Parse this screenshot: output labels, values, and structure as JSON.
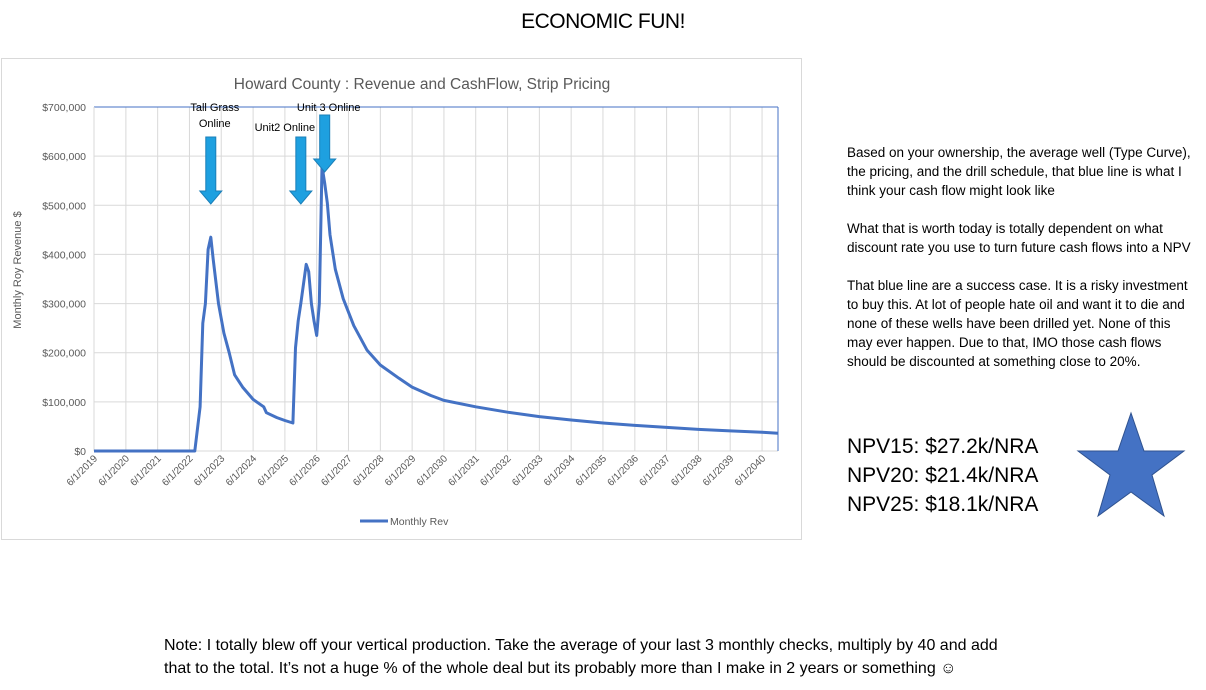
{
  "slide": {
    "title": "ECONOMIC FUN!",
    "paragraphs": [
      "Based on your ownership, the average well (Type Curve), the pricing, and the drill schedule, that blue line is what I think your cash flow might look like",
      "What that is worth today is totally dependent on what discount rate you use to turn future cash flows into a NPV",
      "That blue line are a success case.  It is a risky investment to buy this.  At lot of people hate oil and want it to die and none of these wells have been drilled yet.  None of this may ever happen.  Due to that, IMO those cash flows should be discounted at something close to 20%."
    ],
    "npv": [
      "NPV15:  $27.2k/NRA",
      "NPV20:  $21.4k/NRA",
      "NPV25:  $18.1k/NRA"
    ],
    "note_lines": [
      "Note:  I totally blew off your vertical production.  Take the average of your last 3 monthly checks, multiply by 40 and add",
      "that to the total.   It’s not a huge % of the whole deal but its probably more than I make in 2 years or something ☺"
    ],
    "colors": {
      "series": "#4472c4",
      "arrow": "#1ea0e0",
      "star": "#4472c4",
      "grid": "#d9d9d9"
    },
    "icons": [
      "star-icon",
      "down-arrow-icon"
    ]
  },
  "chart_data": {
    "type": "line",
    "title": "Howard County :  Revenue and CashFlow, Strip Pricing",
    "ylabel": "Monthly Roy Revenue $",
    "xlabel": "",
    "ylim": [
      0,
      700000
    ],
    "xlim": [
      "2019-06-01",
      "2040-12-01"
    ],
    "y_ticks": [
      0,
      100000,
      200000,
      300000,
      400000,
      500000,
      600000,
      700000
    ],
    "y_tick_labels": [
      "$0",
      "$100,000",
      "$200,000",
      "$300,000",
      "$400,000",
      "$500,000",
      "$600,000",
      "$700,000"
    ],
    "x_tick_labels": [
      "6/1/2019",
      "6/1/2020",
      "6/1/2021",
      "6/1/2022",
      "6/1/2023",
      "6/1/2024",
      "6/1/2025",
      "6/1/2026",
      "6/1/2027",
      "6/1/2028",
      "6/1/2029",
      "6/1/2030",
      "6/1/2031",
      "6/1/2032",
      "6/1/2033",
      "6/1/2034",
      "6/1/2035",
      "6/1/2036",
      "6/1/2037",
      "6/1/2038",
      "6/1/2039",
      "6/1/2040"
    ],
    "grid": true,
    "legend": "bottom",
    "series": [
      {
        "name": "Monthly Rev",
        "points": [
          [
            "2019-06-01",
            0
          ],
          [
            "2021-08-01",
            0
          ],
          [
            "2021-10-01",
            0
          ],
          [
            "2022-08-01",
            0
          ],
          [
            "2022-10-01",
            90000
          ],
          [
            "2022-11-01",
            260000
          ],
          [
            "2022-12-01",
            300000
          ],
          [
            "2023-01-01",
            410000
          ],
          [
            "2023-02-01",
            435000
          ],
          [
            "2023-03-01",
            390000
          ],
          [
            "2023-05-01",
            300000
          ],
          [
            "2023-07-01",
            240000
          ],
          [
            "2023-09-01",
            200000
          ],
          [
            "2023-11-01",
            155000
          ],
          [
            "2024-02-01",
            130000
          ],
          [
            "2024-06-01",
            105000
          ],
          [
            "2024-10-01",
            90000
          ],
          [
            "2024-11-01",
            78000
          ],
          [
            "2025-03-01",
            68000
          ],
          [
            "2025-06-01",
            62000
          ],
          [
            "2025-09-01",
            57000
          ],
          [
            "2025-10-01",
            210000
          ],
          [
            "2025-11-01",
            265000
          ],
          [
            "2025-12-01",
            300000
          ],
          [
            "2026-02-01",
            380000
          ],
          [
            "2026-03-01",
            365000
          ],
          [
            "2026-04-01",
            300000
          ],
          [
            "2026-05-01",
            265000
          ],
          [
            "2026-06-01",
            235000
          ],
          [
            "2026-07-01",
            300000
          ],
          [
            "2026-08-01",
            580000
          ],
          [
            "2026-09-01",
            545000
          ],
          [
            "2026-10-01",
            505000
          ],
          [
            "2026-11-01",
            440000
          ],
          [
            "2027-01-01",
            370000
          ],
          [
            "2027-04-01",
            310000
          ],
          [
            "2027-08-01",
            255000
          ],
          [
            "2028-01-01",
            205000
          ],
          [
            "2028-06-01",
            175000
          ],
          [
            "2029-01-01",
            148000
          ],
          [
            "2029-06-01",
            130000
          ],
          [
            "2030-01-01",
            113000
          ],
          [
            "2030-06-01",
            103000
          ],
          [
            "2031-06-01",
            90000
          ],
          [
            "2032-06-01",
            79000
          ],
          [
            "2033-06-01",
            70000
          ],
          [
            "2034-06-01",
            63000
          ],
          [
            "2035-06-01",
            57000
          ],
          [
            "2036-06-01",
            52000
          ],
          [
            "2037-06-01",
            48000
          ],
          [
            "2038-06-01",
            44000
          ],
          [
            "2039-06-01",
            41000
          ],
          [
            "2040-06-01",
            38000
          ],
          [
            "2040-12-01",
            36000
          ]
        ]
      }
    ],
    "annotations": [
      {
        "label_lines": [
          "Tall Grass",
          "Online"
        ],
        "date": "2023-02-01"
      },
      {
        "label_lines": [
          "Unit2 Online"
        ],
        "date": "2025-12-01"
      },
      {
        "label_lines": [
          "Unit 3 Online"
        ],
        "date": "2026-09-01"
      }
    ]
  }
}
